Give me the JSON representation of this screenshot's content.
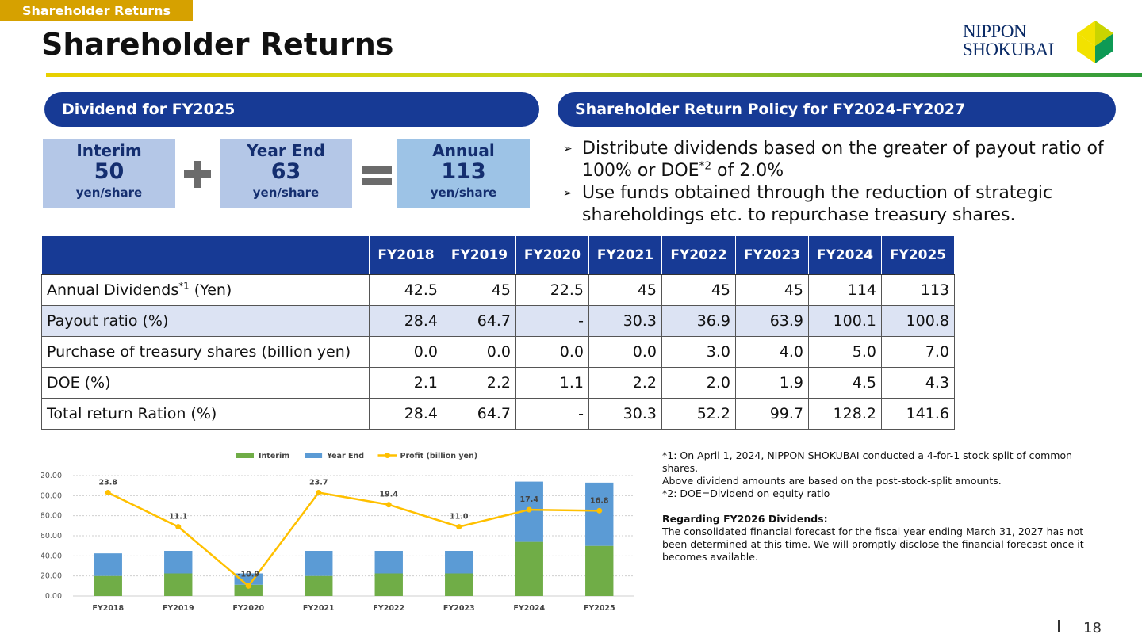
{
  "header": {
    "section_tag": "Shareholder Returns",
    "title": "Shareholder Returns",
    "logo_line1": "NIPPON",
    "logo_line2": "SHOKUBAI"
  },
  "dividend_panel": {
    "heading": "Dividend for FY2025",
    "interim": {
      "label": "Interim",
      "value": "50",
      "unit": "yen/share"
    },
    "year_end": {
      "label": "Year End",
      "value": "63",
      "unit": "yen/share"
    },
    "annual": {
      "label": "Annual",
      "value": "113",
      "unit": "yen/share"
    }
  },
  "policy_panel": {
    "heading": "Shareholder Return Policy for FY2024-FY2027",
    "bullet1_a": "Distribute dividends based on the greater of payout ratio of 100% or DOE",
    "bullet1_sup": "*2",
    "bullet1_b": " of 2.0%",
    "bullet2": "Use funds obtained through the reduction of strategic shareholdings etc. to repurchase treasury shares."
  },
  "table": {
    "columns": [
      "FY2018",
      "FY2019",
      "FY2020",
      "FY2021",
      "FY2022",
      "FY2023",
      "FY2024",
      "FY2025"
    ],
    "rows": [
      {
        "label": "Annual Dividends",
        "label_sup": "*1",
        "label_suffix": " (Yen)",
        "values": [
          "42.5",
          "45",
          "22.5",
          "45",
          "45",
          "45",
          "114",
          "113"
        ]
      },
      {
        "label": "Payout ratio (%)",
        "values": [
          "28.4",
          "64.7",
          "-",
          "30.3",
          "36.9",
          "63.9",
          "100.1",
          "100.8"
        ]
      },
      {
        "label": "Purchase of treasury shares (billion yen)",
        "values": [
          "0.0",
          "0.0",
          "0.0",
          "0.0",
          "3.0",
          "4.0",
          "5.0",
          "7.0"
        ]
      },
      {
        "label": "DOE (%)",
        "values": [
          "2.1",
          "2.2",
          "1.1",
          "2.2",
          "2.0",
          "1.9",
          "4.5",
          "4.3"
        ]
      },
      {
        "label": "Total return Ration (%)",
        "values": [
          "28.4",
          "64.7",
          "-",
          "30.3",
          "52.2",
          "99.7",
          "128.2",
          "141.6"
        ]
      }
    ]
  },
  "chart_data": {
    "type": "bar",
    "stacked": true,
    "categories": [
      "FY2018",
      "FY2019",
      "FY2020",
      "FY2021",
      "FY2022",
      "FY2023",
      "FY2024",
      "FY2025"
    ],
    "series": [
      {
        "name": "Interim",
        "type": "bar",
        "color": "#70ad47",
        "values": [
          20,
          22.5,
          11.25,
          20,
          22.5,
          22.5,
          54,
          50
        ]
      },
      {
        "name": "Year End",
        "type": "bar",
        "color": "#5b9bd5",
        "values": [
          22.5,
          22.5,
          11.25,
          25,
          22.5,
          22.5,
          60,
          63
        ]
      },
      {
        "name": "Profit (billion yen)",
        "type": "line",
        "color": "#ffc000",
        "values": [
          23.8,
          11.1,
          -10.9,
          23.7,
          19.4,
          11.0,
          17.4,
          16.8
        ],
        "labels": [
          "23.8",
          "11.1",
          "-10.9",
          "23.7",
          "19.4",
          "11.0",
          "17.4",
          "16.8"
        ]
      }
    ],
    "yticks": [
      "0.00",
      "20.00",
      "40.00",
      "60.00",
      "80.00",
      "100.00",
      "120.00"
    ],
    "ylim": [
      0,
      120
    ],
    "line_plot_y": [
      103,
      69,
      10,
      103,
      91,
      69,
      86,
      85
    ],
    "legend_position": "top",
    "grid": true
  },
  "notes": {
    "note1": "*1: On April 1, 2024, NIPPON SHOKUBAI conducted a 4-for-1 stock split of common shares.",
    "note1b": "Above dividend amounts are based on the post-stock-split amounts.",
    "note2": "*2: DOE=Dividend on equity ratio",
    "fy2026_heading": "Regarding FY2026 Dividends:",
    "fy2026_text": "The consolidated financial forecast for the fiscal year ending March 31, 2027 has not been determined at this time. We will promptly disclose the financial forecast once it becomes available."
  },
  "footer": {
    "page_number": "18"
  },
  "colors": {
    "navy": "#173a95",
    "gold": "#d6a100",
    "box_light": "#b4c7e7",
    "box_annual": "#9dc3e6"
  }
}
